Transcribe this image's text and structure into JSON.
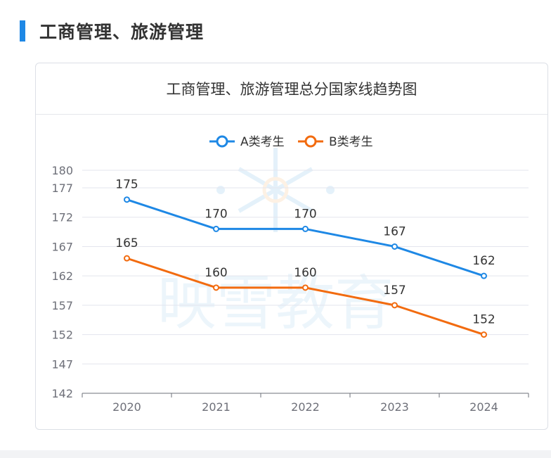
{
  "section": {
    "title": "工商管理、旅游管理"
  },
  "card": {
    "title": "工商管理、旅游管理总分国家线趋势图"
  },
  "watermark": {
    "text": "映雪教育"
  },
  "chart_data": {
    "type": "line",
    "categories": [
      "2020",
      "2021",
      "2022",
      "2023",
      "2024"
    ],
    "series": [
      {
        "name": "A类考生",
        "values": [
          175,
          170,
          170,
          167,
          162
        ],
        "color": "#1e88e5"
      },
      {
        "name": "B类考生",
        "values": [
          165,
          160,
          160,
          157,
          152
        ],
        "color": "#f26b0f"
      }
    ],
    "yticks": [
      142,
      147,
      152,
      157,
      162,
      167,
      172,
      177,
      180
    ],
    "ylim": [
      142,
      180
    ],
    "grid": true,
    "legend": "top-center",
    "data_labels": true
  }
}
